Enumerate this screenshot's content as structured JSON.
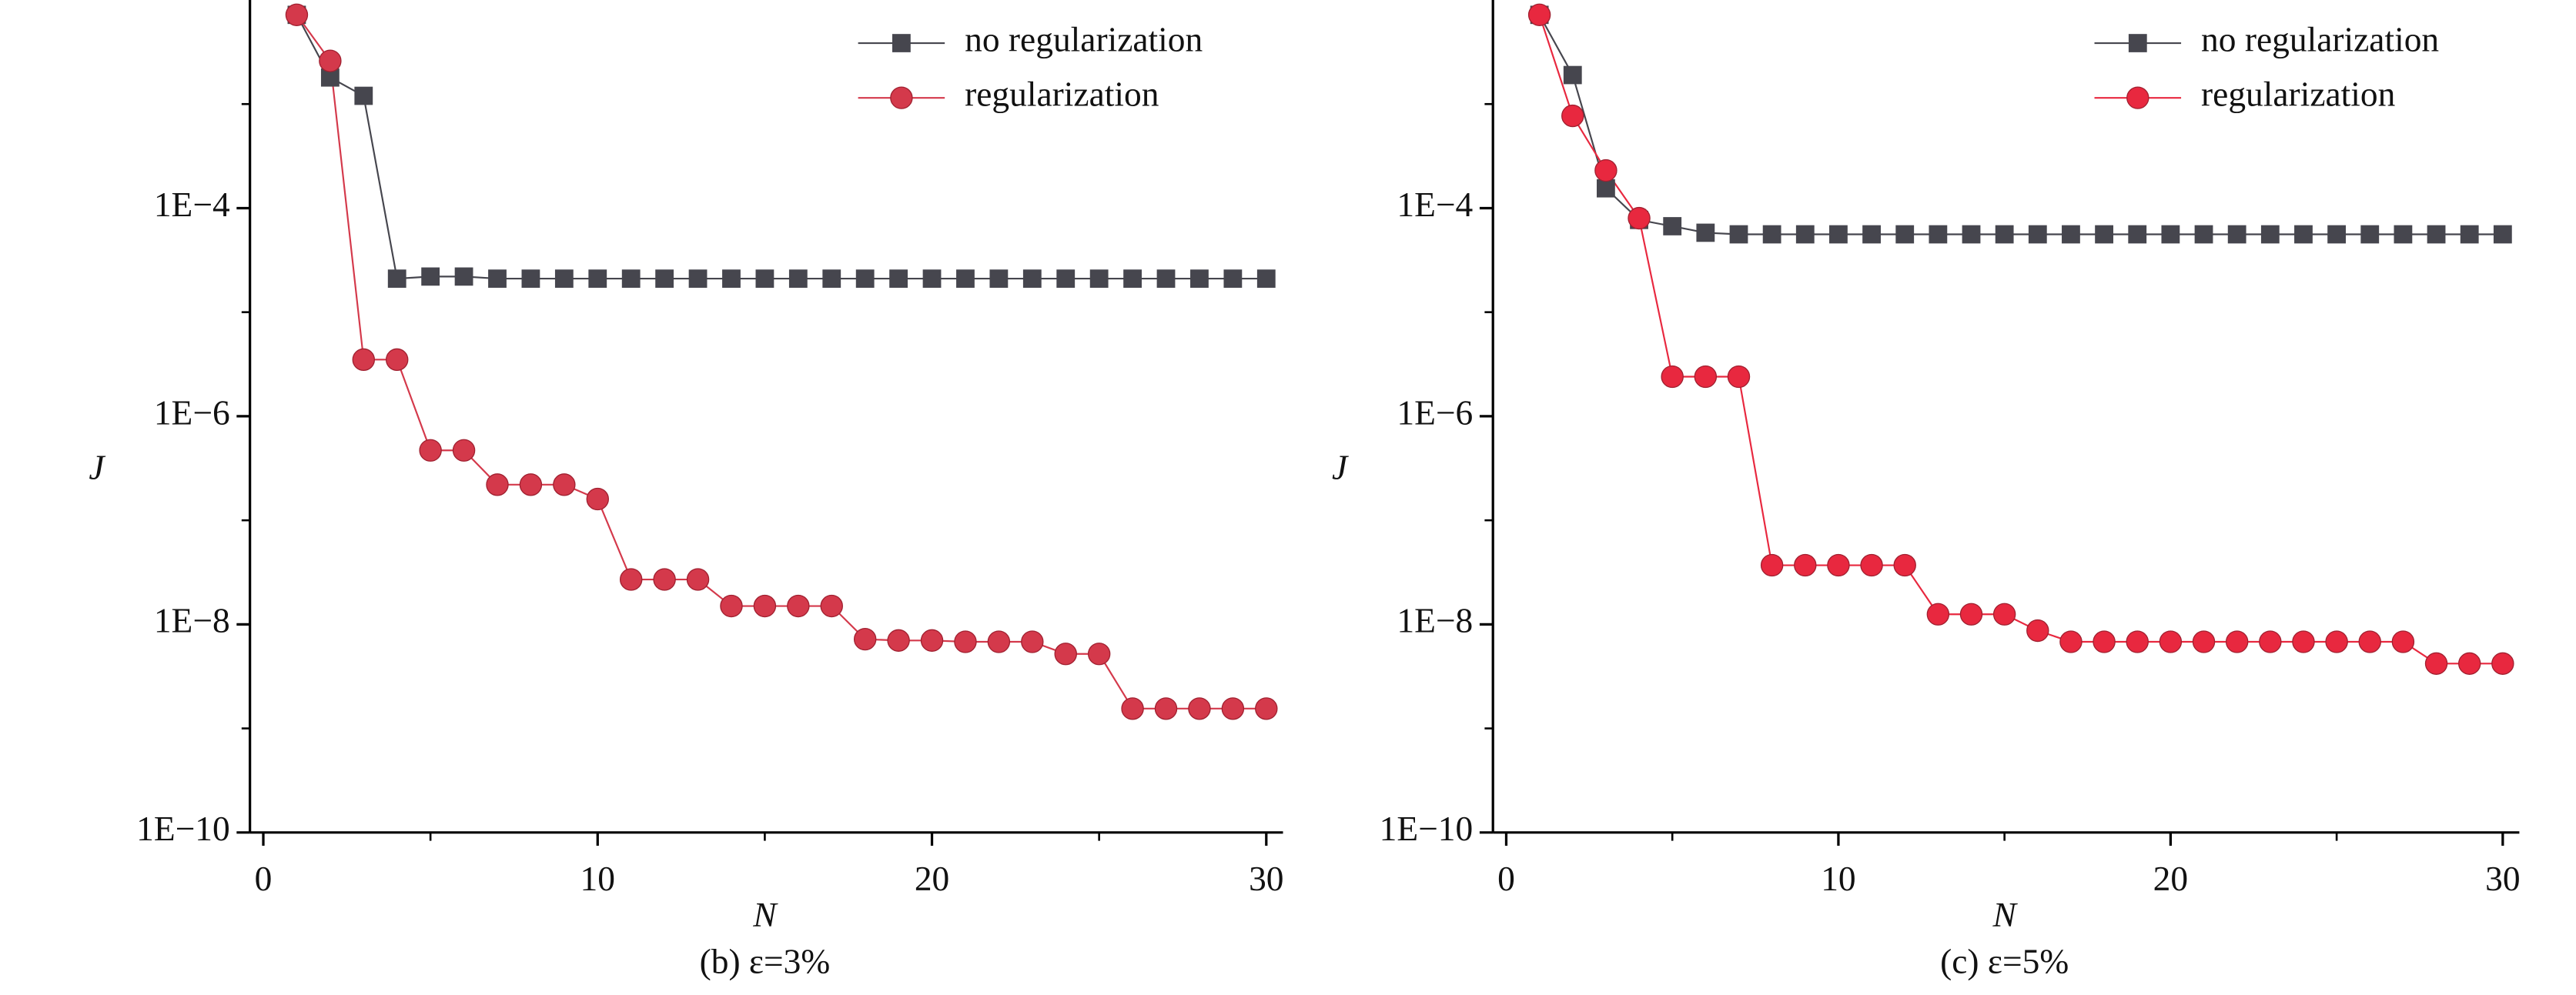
{
  "chart_data": [
    {
      "type": "line",
      "caption": "(b) ε=3%",
      "xlabel": "N",
      "ylabel": "J",
      "xlim": [
        -0.4,
        30.5
      ],
      "xticks": [
        0,
        10,
        20,
        30
      ],
      "ylim": [
        1e-10,
        0.01
      ],
      "log_y": true,
      "yticks": [
        {
          "value": 1e-10,
          "label": "1E−10"
        },
        {
          "value": 1e-08,
          "label": "1E−8"
        },
        {
          "value": 1e-06,
          "label": "1E−6"
        },
        {
          "value": 0.0001,
          "label": "1E−4"
        }
      ],
      "legend": "upper right",
      "x": [
        1,
        2,
        3,
        4,
        5,
        6,
        7,
        8,
        9,
        10,
        11,
        12,
        13,
        14,
        15,
        16,
        17,
        18,
        19,
        20,
        21,
        22,
        23,
        24,
        25,
        26,
        27,
        28,
        29,
        30
      ],
      "series": [
        {
          "name": "no regularization",
          "color": "#46464e",
          "marker": "square",
          "values": [
            0.0072,
            0.0018,
            0.0012,
            2.1e-05,
            2.2e-05,
            2.2e-05,
            2.1e-05,
            2.1e-05,
            2.1e-05,
            2.1e-05,
            2.1e-05,
            2.1e-05,
            2.1e-05,
            2.1e-05,
            2.1e-05,
            2.1e-05,
            2.1e-05,
            2.1e-05,
            2.1e-05,
            2.1e-05,
            2.1e-05,
            2.1e-05,
            2.1e-05,
            2.1e-05,
            2.1e-05,
            2.1e-05,
            2.1e-05,
            2.1e-05,
            2.1e-05,
            2.1e-05
          ]
        },
        {
          "name": "regularization",
          "color": "#d4394b",
          "marker": "circle",
          "values": [
            0.0072,
            0.0026,
            3.5e-06,
            3.5e-06,
            4.7e-07,
            4.7e-07,
            2.2e-07,
            2.2e-07,
            2.2e-07,
            1.6e-07,
            2.7e-08,
            2.7e-08,
            2.7e-08,
            1.5e-08,
            1.5e-08,
            1.5e-08,
            1.5e-08,
            7.2e-09,
            7e-09,
            7e-09,
            6.8e-09,
            6.8e-09,
            6.8e-09,
            5.2e-09,
            5.2e-09,
            1.55e-09,
            1.55e-09,
            1.55e-09,
            1.55e-09,
            1.55e-09
          ]
        }
      ]
    },
    {
      "type": "line",
      "caption": "(c) ε=5%",
      "xlabel": "N",
      "ylabel": "J",
      "xlim": [
        -0.4,
        30.5
      ],
      "xticks": [
        0,
        10,
        20,
        30
      ],
      "ylim": [
        1e-10,
        0.01
      ],
      "log_y": true,
      "yticks": [
        {
          "value": 1e-10,
          "label": "1E−10"
        },
        {
          "value": 1e-08,
          "label": "1E−8"
        },
        {
          "value": 1e-06,
          "label": "1E−6"
        },
        {
          "value": 0.0001,
          "label": "1E−4"
        }
      ],
      "legend": "upper right",
      "x": [
        1,
        2,
        3,
        4,
        5,
        6,
        7,
        8,
        9,
        10,
        11,
        12,
        13,
        14,
        15,
        16,
        17,
        18,
        19,
        20,
        21,
        22,
        23,
        24,
        25,
        26,
        27,
        28,
        29,
        30
      ],
      "series": [
        {
          "name": "no regularization",
          "color": "#46464e",
          "marker": "square",
          "values": [
            0.0072,
            0.0019,
            0.000155,
            7.7e-05,
            6.7e-05,
            5.8e-05,
            5.6e-05,
            5.6e-05,
            5.6e-05,
            5.6e-05,
            5.6e-05,
            5.6e-05,
            5.6e-05,
            5.6e-05,
            5.6e-05,
            5.6e-05,
            5.6e-05,
            5.6e-05,
            5.6e-05,
            5.6e-05,
            5.6e-05,
            5.6e-05,
            5.6e-05,
            5.6e-05,
            5.6e-05,
            5.6e-05,
            5.6e-05,
            5.6e-05,
            5.6e-05,
            5.6e-05
          ]
        },
        {
          "name": "regularization",
          "color": "#e8283f",
          "marker": "circle",
          "values": [
            0.0072,
            0.00077,
            0.00023,
            8e-05,
            2.4e-06,
            2.4e-06,
            2.4e-06,
            3.7e-08,
            3.7e-08,
            3.7e-08,
            3.7e-08,
            3.7e-08,
            1.25e-08,
            1.25e-08,
            1.25e-08,
            8.7e-09,
            6.8e-09,
            6.8e-09,
            6.8e-09,
            6.8e-09,
            6.8e-09,
            6.8e-09,
            6.8e-09,
            6.8e-09,
            6.8e-09,
            6.8e-09,
            6.8e-09,
            4.2e-09,
            4.2e-09,
            4.2e-09
          ]
        }
      ]
    }
  ]
}
